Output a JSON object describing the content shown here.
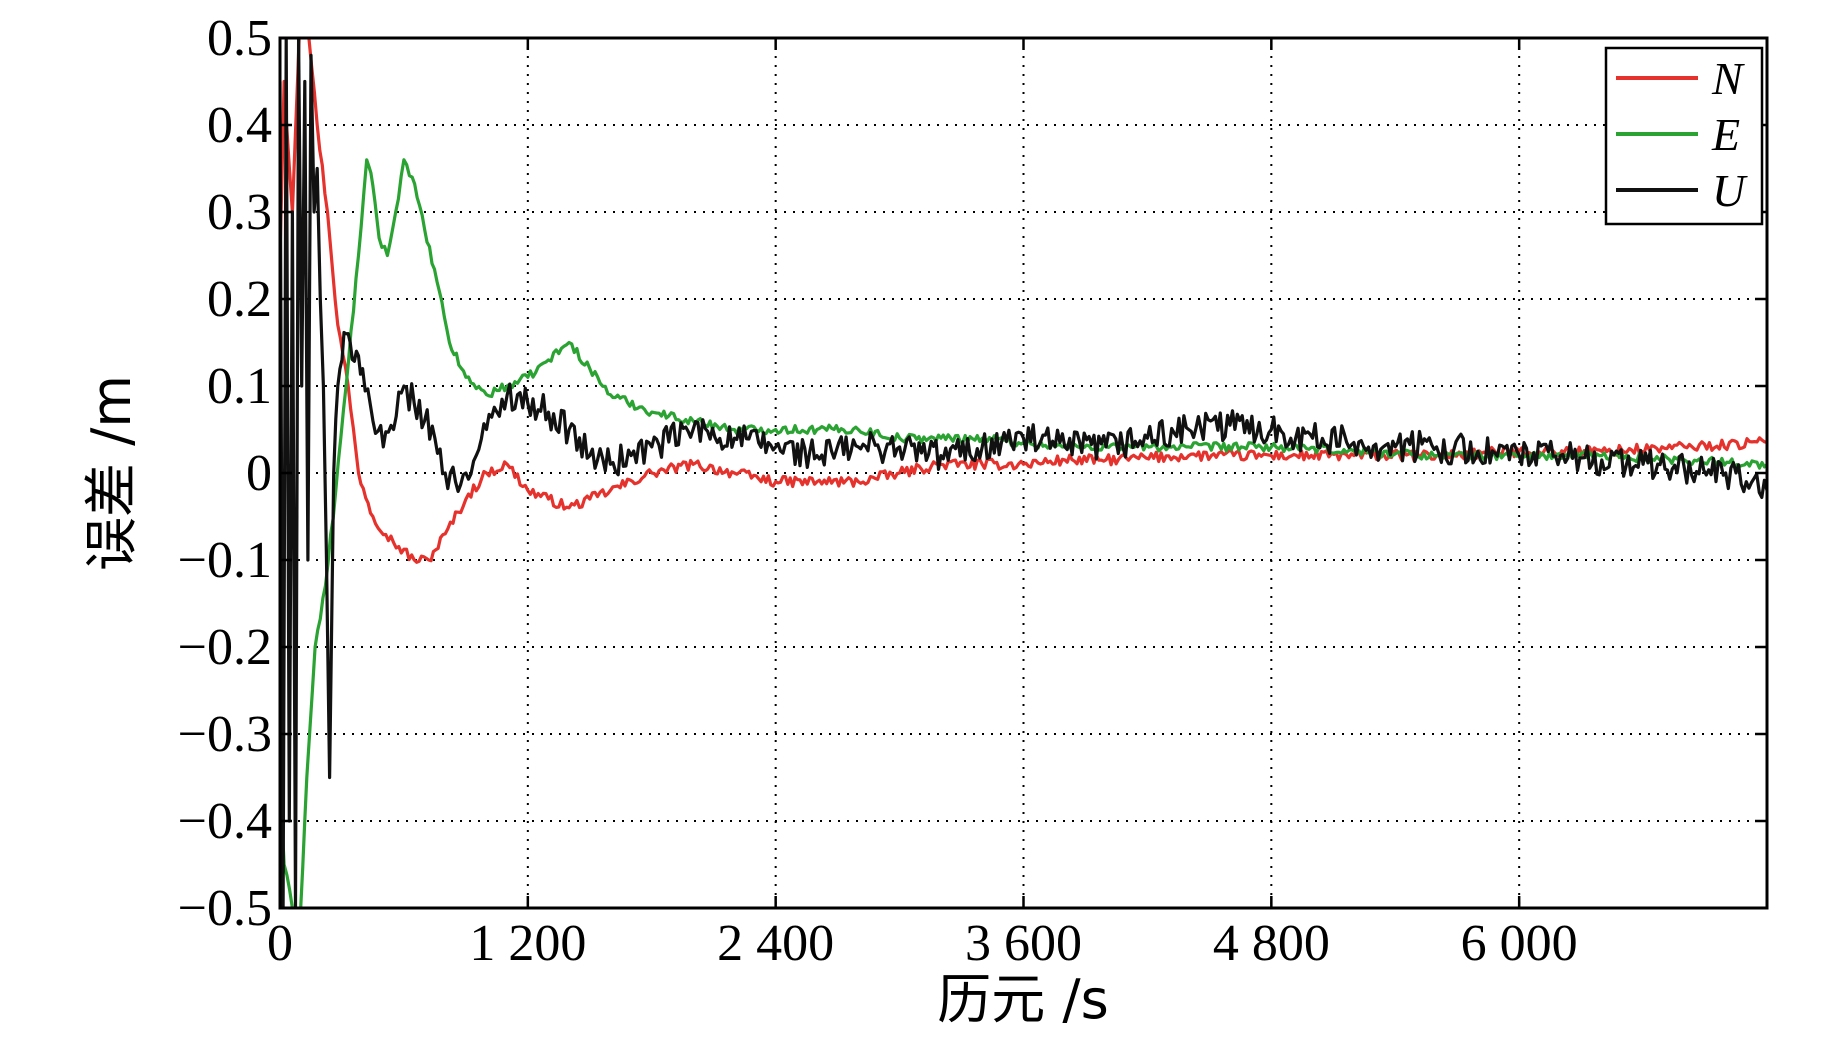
{
  "chart_data": {
    "type": "line",
    "xlabel": "历元 /s",
    "ylabel": "误差 /m",
    "xlim": [
      0,
      7200
    ],
    "ylim": [
      -0.5,
      0.5
    ],
    "x_ticks": [
      0,
      1200,
      2400,
      3600,
      4800,
      6000
    ],
    "x_tick_labels": [
      "0",
      "1 200",
      "2 400",
      "3 600",
      "4 800",
      "6 000"
    ],
    "y_ticks": [
      0.5,
      0.4,
      0.3,
      0.2,
      0.1,
      0,
      -0.1,
      -0.2,
      -0.3,
      -0.4,
      -0.5
    ],
    "y_tick_labels": [
      "0.5",
      "0.4",
      "0.3",
      "0.2",
      "0.1",
      "0",
      "−0.1",
      "−0.2",
      "−0.3",
      "−0.4",
      "−0.5"
    ],
    "grid": true,
    "legend_position": "top-right",
    "series": [
      {
        "name": "N",
        "color": "#e5322d",
        "noise": 0.006,
        "x": [
          0,
          20,
          60,
          100,
          140,
          180,
          230,
          280,
          330,
          380,
          450,
          550,
          650,
          720,
          800,
          900,
          1000,
          1100,
          1200,
          1300,
          1400,
          1500,
          1600,
          1800,
          2000,
          2200,
          2400,
          2600,
          2800,
          3000,
          3200,
          3400,
          3600,
          3800,
          4000,
          4400,
          4800,
          5200,
          5600,
          6000,
          6400,
          6800,
          7200
        ],
        "y": [
          0.25,
          0.45,
          0.3,
          0.55,
          0.5,
          0.4,
          0.3,
          0.17,
          0.1,
          0.0,
          -0.05,
          -0.08,
          -0.1,
          -0.1,
          -0.07,
          -0.03,
          0.0,
          0.01,
          -0.02,
          -0.03,
          -0.04,
          -0.03,
          -0.02,
          0.0,
          0.01,
          0.0,
          -0.01,
          -0.01,
          -0.01,
          0.0,
          0.01,
          0.01,
          0.01,
          0.015,
          0.015,
          0.02,
          0.02,
          0.02,
          0.02,
          0.025,
          0.025,
          0.03,
          0.035
        ]
      },
      {
        "name": "E",
        "color": "#2aa332",
        "noise": 0.005,
        "x": [
          0,
          20,
          60,
          100,
          130,
          170,
          220,
          270,
          320,
          380,
          420,
          450,
          480,
          520,
          560,
          600,
          640,
          700,
          760,
          820,
          900,
          1000,
          1100,
          1200,
          1300,
          1400,
          1500,
          1600,
          1800,
          2000,
          2200,
          2400,
          2600,
          2800,
          3000,
          3200,
          3400,
          3600,
          3800,
          4000,
          4400,
          4800,
          5200,
          5600,
          6000,
          6400,
          6800,
          7200
        ],
        "y": [
          -0.35,
          -0.45,
          -0.5,
          -0.5,
          -0.35,
          -0.2,
          -0.13,
          -0.02,
          0.1,
          0.25,
          0.36,
          0.33,
          0.27,
          0.25,
          0.3,
          0.36,
          0.34,
          0.28,
          0.22,
          0.15,
          0.11,
          0.09,
          0.1,
          0.11,
          0.13,
          0.15,
          0.12,
          0.09,
          0.07,
          0.06,
          0.05,
          0.05,
          0.05,
          0.05,
          0.04,
          0.04,
          0.04,
          0.035,
          0.03,
          0.03,
          0.03,
          0.03,
          0.025,
          0.02,
          0.02,
          0.02,
          0.015,
          0.01
        ]
      },
      {
        "name": "U",
        "color": "#111111",
        "noise": 0.018,
        "x": [
          0,
          15,
          30,
          45,
          60,
          75,
          90,
          105,
          120,
          135,
          150,
          165,
          180,
          195,
          210,
          225,
          240,
          260,
          280,
          300,
          320,
          340,
          370,
          400,
          450,
          500,
          550,
          600,
          650,
          700,
          750,
          800,
          850,
          900,
          950,
          1000,
          1050,
          1100,
          1150,
          1200,
          1300,
          1400,
          1500,
          1600,
          1700,
          1800,
          2000,
          2200,
          2400,
          2600,
          2800,
          3000,
          3200,
          3400,
          3600,
          3800,
          4000,
          4200,
          4400,
          4600,
          4800,
          5000,
          5200,
          5400,
          5600,
          5800,
          6000,
          6200,
          6400,
          6600,
          6800,
          7000,
          7100,
          7200
        ],
        "y": [
          0.45,
          -0.5,
          0.5,
          -0.4,
          0.3,
          -0.5,
          0.5,
          0.1,
          0.45,
          -0.1,
          0.48,
          0.3,
          0.35,
          0.2,
          0.1,
          -0.1,
          -0.35,
          0.0,
          0.1,
          0.13,
          0.16,
          0.15,
          0.14,
          0.12,
          0.06,
          0.03,
          0.05,
          0.1,
          0.08,
          0.06,
          0.04,
          0.0,
          -0.01,
          0.0,
          0.02,
          0.05,
          0.07,
          0.09,
          0.09,
          0.08,
          0.07,
          0.05,
          0.02,
          0.01,
          0.02,
          0.03,
          0.05,
          0.04,
          0.03,
          0.02,
          0.03,
          0.03,
          0.02,
          0.03,
          0.04,
          0.03,
          0.03,
          0.04,
          0.05,
          0.055,
          0.05,
          0.04,
          0.035,
          0.03,
          0.03,
          0.025,
          0.02,
          0.02,
          0.015,
          0.01,
          0.005,
          0.0,
          -0.01,
          -0.02
        ]
      }
    ]
  }
}
